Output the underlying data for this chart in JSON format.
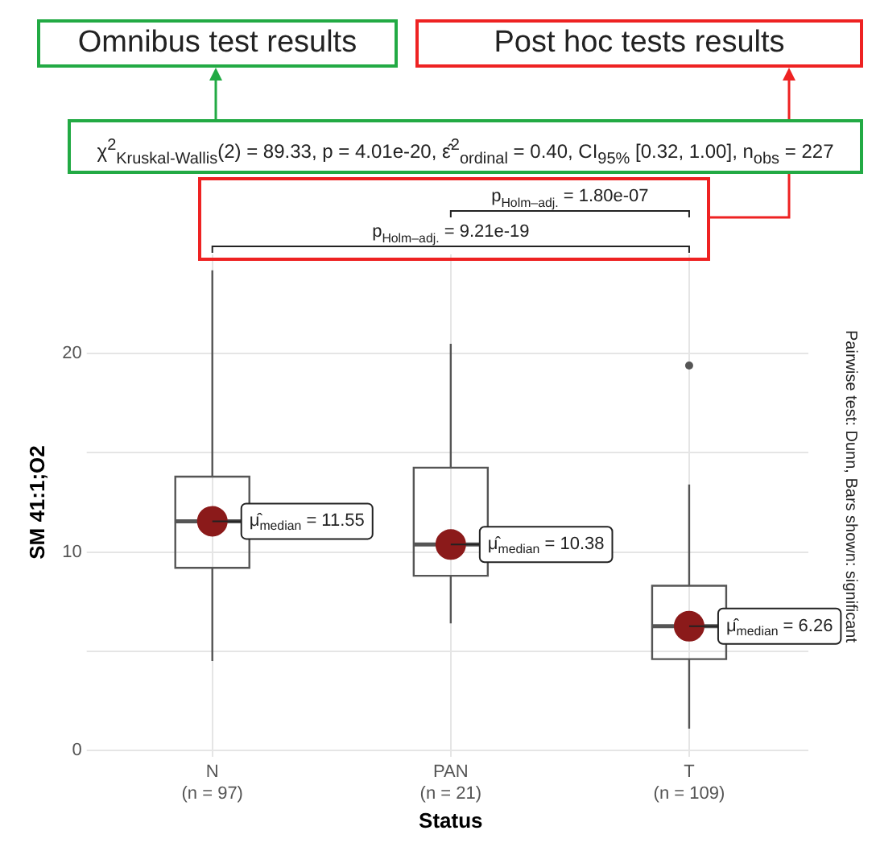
{
  "chart_data": {
    "type": "box",
    "subtitle": "χ$^{2}$$_{Kruskal-Wallis}$(2) = 89.33, p = 4.01e-20, ε̂$^{2}$$_{ordinal}$ = 0.40, CI$_{95%}$ [0.32, 1.00], n$_{obs}$ = 227",
    "annotations": [
      "Omnibus test results",
      "Post hoc tests results",
      "p$_{Holm–adj.}$ = 1.80e-07",
      "p$_{Holm–adj.}$ = 9.21e-19",
      "Pairwise test: Dunn, Bars shown: significant"
    ],
    "xlabel": "Status",
    "ylabel": "SM 41:1;O2",
    "categories": [
      "N\n(n = 97)",
      "PAN\n(n = 21)",
      "T\n(n = 109)"
    ],
    "boxes": [
      {
        "low": 4.5,
        "q1": 9.2,
        "median": 11.55,
        "q3": 13.8,
        "high": 24.2
      },
      {
        "low": 6.4,
        "q1": 8.8,
        "median": 10.38,
        "q3": 14.25,
        "high": 20.5
      },
      {
        "low": 1.1,
        "q1": 4.6,
        "median": 6.26,
        "q3": 8.3,
        "high": 13.4,
        "outliers": [
          19.4
        ]
      }
    ],
    "series": [
      {
        "type": "scatter",
        "color": "#8b1a1a",
        "x": [
          "N\n(n = 97)",
          "PAN\n(n = 21)",
          "T\n(n = 109)"
        ],
        "values": [
          11.55,
          10.38,
          6.26
        ],
        "value_labels": [
          "μ̂$_{median}$ = 11.55",
          "μ̂$_{median}$ = 10.38",
          "μ̂$_{median}$ = 6.26"
        ]
      }
    ],
    "ylim": [
      0,
      25
    ],
    "yticks": [
      0,
      {
        "value": 5,
        "label": null
      },
      10,
      {
        "value": 15,
        "label": null
      },
      20
    ],
    "grid": true,
    "legend": false
  }
}
